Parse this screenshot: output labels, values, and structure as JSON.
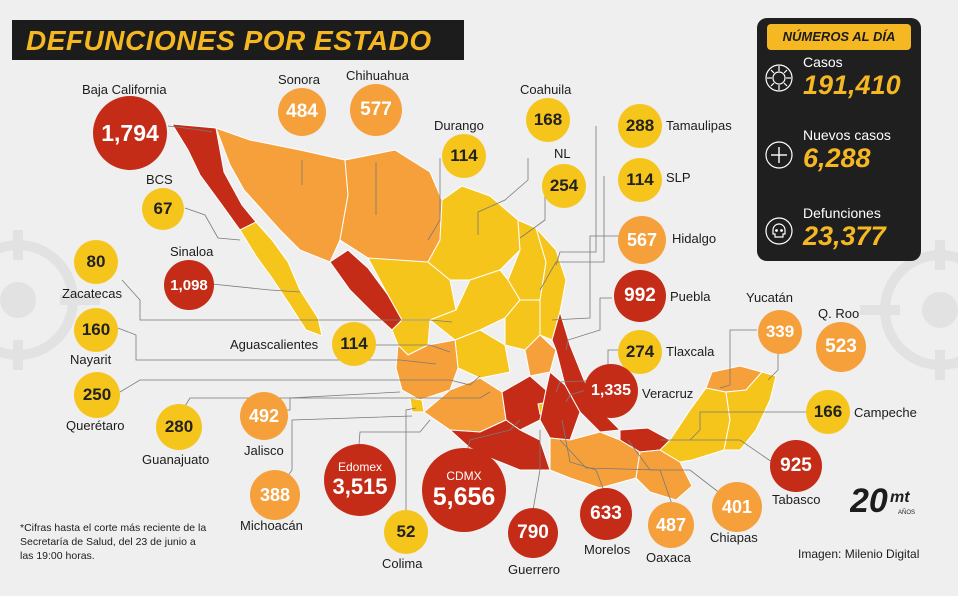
{
  "title": "DEFUNCIONES POR ESTADO",
  "panel": {
    "header": "NÚMEROS AL DÍA",
    "stats": [
      {
        "label": "Casos",
        "value": "191,410",
        "icon": "virus-icon"
      },
      {
        "label": "Nuevos casos",
        "value": "6,288",
        "icon": "plus-icon"
      },
      {
        "label": "Defunciones",
        "value": "23,377",
        "icon": "skull-icon"
      }
    ]
  },
  "states": [
    {
      "key": "baja_california",
      "label": "Baja California",
      "value": "1,794",
      "color": "#c42c18"
    },
    {
      "key": "sonora",
      "label": "Sonora",
      "value": "484",
      "color": "#f5a03b"
    },
    {
      "key": "chihuahua",
      "label": "Chihuahua",
      "value": "577",
      "color": "#f5a03b"
    },
    {
      "key": "durango",
      "label": "Durango",
      "value": "114",
      "color": "#f5c51c"
    },
    {
      "key": "coahuila",
      "label": "Coahuila",
      "value": "168",
      "color": "#f5c51c"
    },
    {
      "key": "tamaulipas",
      "label": "Tamaulipas",
      "value": "288",
      "color": "#f5c51c"
    },
    {
      "key": "nl",
      "label": "NL",
      "value": "254",
      "color": "#f5c51c"
    },
    {
      "key": "slp",
      "label": "SLP",
      "value": "114",
      "color": "#f5c51c"
    },
    {
      "key": "bcs",
      "label": "BCS",
      "value": "67",
      "color": "#f5c51c"
    },
    {
      "key": "hidalgo",
      "label": "Hidalgo",
      "value": "567",
      "color": "#f5a03b"
    },
    {
      "key": "sinaloa",
      "label": "Sinaloa",
      "value": "1,098",
      "color": "#c42c18"
    },
    {
      "key": "zacatecas",
      "label": "Zacatecas",
      "value": "80",
      "color": "#f5c51c"
    },
    {
      "key": "puebla",
      "label": "Puebla",
      "value": "992",
      "color": "#c42c18"
    },
    {
      "key": "yucatan",
      "label": "Yucatán",
      "value": "339",
      "color": "#f5a03b"
    },
    {
      "key": "qroo",
      "label": "Q. Roo",
      "value": "523",
      "color": "#f5a03b"
    },
    {
      "key": "nayarit",
      "label": "Nayarit",
      "value": "160",
      "color": "#f5c51c"
    },
    {
      "key": "aguascalientes",
      "label": "Aguascalientes",
      "value": "114",
      "color": "#f5c51c"
    },
    {
      "key": "tlaxcala",
      "label": "Tlaxcala",
      "value": "274",
      "color": "#f5c51c"
    },
    {
      "key": "queretaro",
      "label": "Querétaro",
      "value": "250",
      "color": "#f5c51c"
    },
    {
      "key": "veracruz",
      "label": "Veracruz",
      "value": "1,335",
      "color": "#c42c18"
    },
    {
      "key": "campeche",
      "label": "Campeche",
      "value": "166",
      "color": "#f5c51c"
    },
    {
      "key": "guanajuato",
      "label": "Guanajuato",
      "value": "280",
      "color": "#f5c51c"
    },
    {
      "key": "jalisco",
      "label": "Jalisco",
      "value": "492",
      "color": "#f5a03b"
    },
    {
      "key": "edomex",
      "label": "Edomex",
      "value": "3,515",
      "color": "#c42c18"
    },
    {
      "key": "cdmx",
      "label": "CDMX",
      "value": "5,656",
      "color": "#c42c18"
    },
    {
      "key": "tabasco",
      "label": "Tabasco",
      "value": "925",
      "color": "#c42c18"
    },
    {
      "key": "michoacan",
      "label": "Michoacán",
      "value": "388",
      "color": "#f5a03b"
    },
    {
      "key": "colima",
      "label": "Colima",
      "value": "52",
      "color": "#f5c51c"
    },
    {
      "key": "guerrero",
      "label": "Guerrero",
      "value": "790",
      "color": "#c42c18"
    },
    {
      "key": "morelos",
      "label": "Morelos",
      "value": "633",
      "color": "#c42c18"
    },
    {
      "key": "oaxaca",
      "label": "Oaxaca",
      "value": "487",
      "color": "#f5a03b"
    },
    {
      "key": "chiapas",
      "label": "Chiapas",
      "value": "401",
      "color": "#f5a03b"
    }
  ],
  "note": "*Cifras hasta el corte más reciente de la Secretaría de Salud, del 23 de junio a las 19:00 horas.",
  "credit": "Imagen: Milenio Digital",
  "logo": {
    "number": "20",
    "brand": "mt",
    "sub": "AÑOS"
  }
}
